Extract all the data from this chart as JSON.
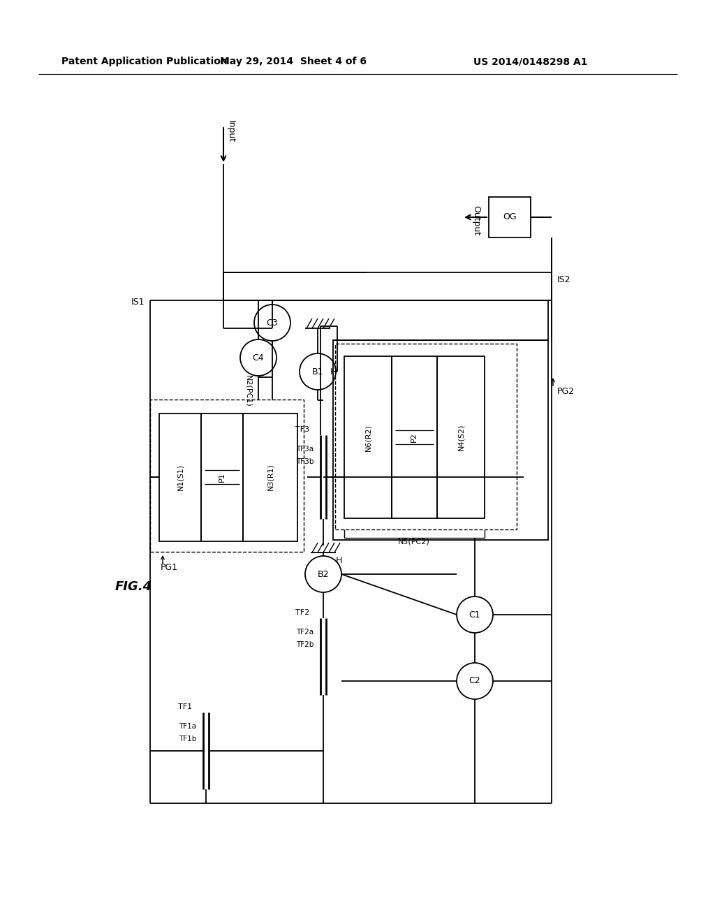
{
  "bg_color": "#ffffff",
  "line_color": "#000000",
  "header_left": "Patent Application Publication",
  "header_mid": "May 29, 2014  Sheet 4 of 6",
  "header_right": "US 2014/0148298 A1"
}
